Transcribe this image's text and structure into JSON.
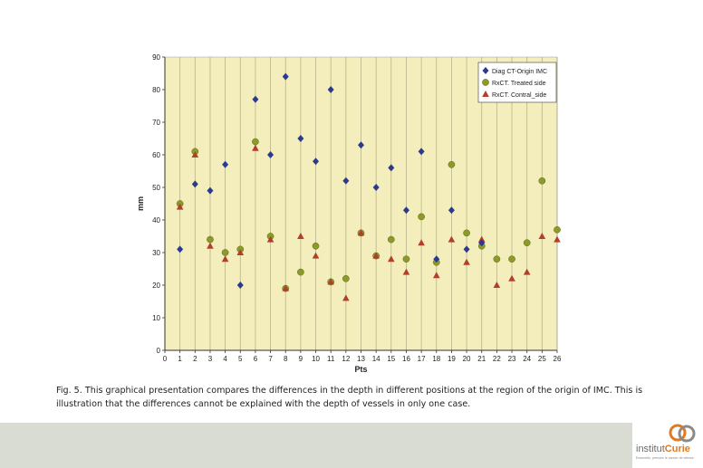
{
  "chart_data": {
    "type": "scatter",
    "title": "",
    "xlabel": "Pts",
    "ylabel": "mm",
    "xlim": [
      0,
      26
    ],
    "ylim": [
      0,
      90
    ],
    "xticks": [
      "0",
      "1",
      "2",
      "3",
      "4",
      "5",
      "6",
      "7",
      "8",
      "9",
      "10",
      "11",
      "12",
      "13",
      "14",
      "15",
      "16",
      "17",
      "18",
      "19",
      "20",
      "21",
      "22",
      "23",
      "24",
      "25",
      "26"
    ],
    "yticks": [
      "0",
      "10",
      "20",
      "30",
      "40",
      "50",
      "60",
      "70",
      "80",
      "90"
    ],
    "grid": "vertical",
    "legend_position": "top-right",
    "series": [
      {
        "name": "Diag CT-Origin IMC",
        "marker": "diamond",
        "color": "#2b3a8f",
        "x": [
          1,
          2,
          3,
          4,
          5,
          6,
          7,
          8,
          9,
          10,
          11,
          12,
          13,
          14,
          15,
          16,
          17,
          18,
          19,
          20,
          21
        ],
        "values": [
          31,
          51,
          49,
          57,
          20,
          77,
          60,
          84,
          65,
          58,
          80,
          52,
          63,
          50,
          56,
          43,
          61,
          28,
          43,
          31,
          33
        ]
      },
      {
        "name": "RxCT. Treated side",
        "marker": "circle",
        "color": "#8c9a2a",
        "x": [
          1,
          2,
          3,
          4,
          5,
          6,
          7,
          8,
          9,
          10,
          11,
          12,
          13,
          14,
          15,
          16,
          17,
          18,
          19,
          20,
          21,
          22,
          23,
          24,
          25,
          26
        ],
        "values": [
          45,
          61,
          34,
          30,
          31,
          64,
          35,
          19,
          24,
          32,
          21,
          22,
          36,
          29,
          34,
          28,
          41,
          27,
          57,
          36,
          32,
          28,
          28,
          33,
          52,
          37
        ]
      },
      {
        "name": "RxCT. Contral_side",
        "marker": "triangle",
        "color": "#b0402a",
        "x": [
          1,
          2,
          3,
          4,
          5,
          6,
          7,
          8,
          9,
          10,
          11,
          12,
          13,
          14,
          15,
          16,
          17,
          18,
          19,
          20,
          21,
          22,
          23,
          24,
          25,
          26
        ],
        "values": [
          44,
          60,
          32,
          28,
          30,
          62,
          34,
          19,
          35,
          29,
          21,
          16,
          36,
          29,
          28,
          24,
          33,
          23,
          34,
          27,
          34,
          20,
          22,
          24,
          35,
          34
        ]
      }
    ]
  },
  "caption": "Fig. 5. This graphical presentation compares the differences in the depth in different positions at the region of the origin of IMC. This is illustration that the differences cannot be explained with the depth of vessels in only one case.",
  "logo": {
    "name_part1": "institut",
    "name_part2": "Curie",
    "tagline": "Ensemble, prenons le cancer de vitesse",
    "colors": {
      "orange": "#e07a1f",
      "grey": "#6a6a6a"
    }
  },
  "colors": {
    "plot_background": "#f4eebc",
    "grid_line": "#b9b38c",
    "footer_band": "#d9dcd3"
  }
}
